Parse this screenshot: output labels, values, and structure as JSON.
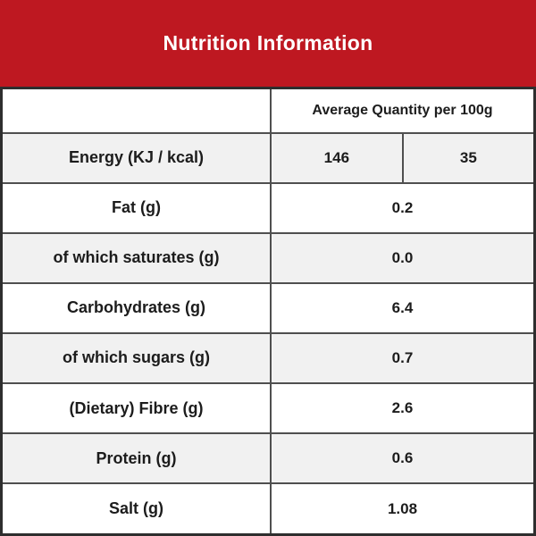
{
  "banner": {
    "title": "Nutrition Information"
  },
  "table": {
    "column_header": "Average Quantity per 100g",
    "rows": [
      {
        "label": "Energy (KJ / kcal)",
        "values": [
          "146",
          "35"
        ]
      },
      {
        "label": "Fat (g)",
        "values": [
          "0.2"
        ]
      },
      {
        "label": "of which saturates (g)",
        "values": [
          "0.0"
        ]
      },
      {
        "label": "Carbohydrates (g)",
        "values": [
          "6.4"
        ]
      },
      {
        "label": "of which sugars (g)",
        "values": [
          "0.7"
        ]
      },
      {
        "label": "(Dietary) Fibre (g)",
        "values": [
          "2.6"
        ]
      },
      {
        "label": "Protein (g)",
        "values": [
          "0.6"
        ]
      },
      {
        "label": "Salt (g)",
        "values": [
          "1.08"
        ]
      }
    ]
  },
  "colors": {
    "banner-red": "#BE1821",
    "row-alt": "#F1F1F1",
    "border-inner": "#4f4f4f",
    "border-outer": "#2e2e2e",
    "text-dark": "#1c1c1c",
    "text-light": "#ffffff"
  }
}
